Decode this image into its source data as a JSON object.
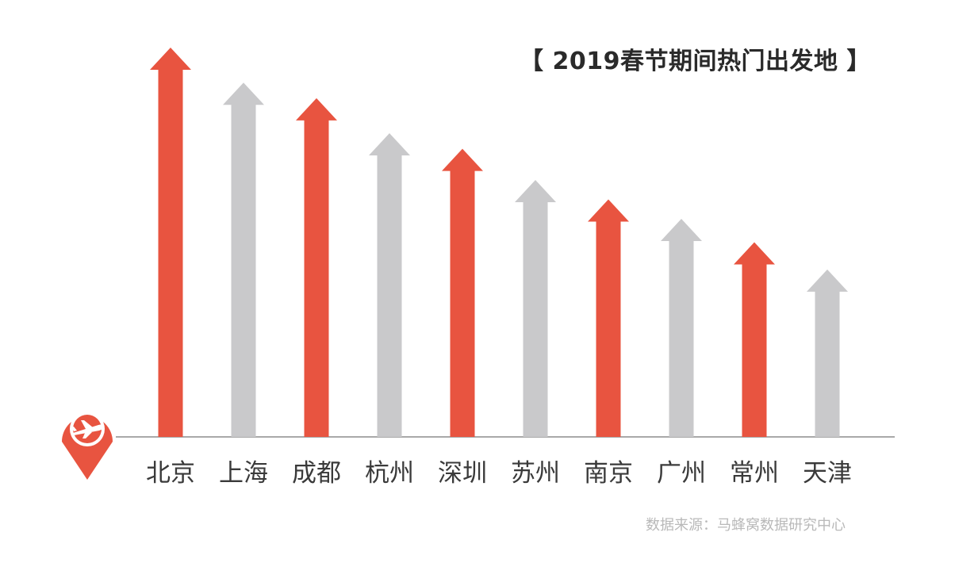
{
  "title": "【 2019春节期间热门出发地 】",
  "source": "数据来源：马蜂窝数据研究中心",
  "colors": {
    "highlight": "#e85440",
    "muted": "#c9c9cb",
    "axis": "#a9a9a9",
    "text": "#3a3a3a"
  },
  "icons": {
    "location_pin": "location-pin-airplane-icon"
  },
  "chart_data": {
    "type": "bar",
    "categories": [
      "北京",
      "上海",
      "成都",
      "杭州",
      "深圳",
      "苏州",
      "南京",
      "广州",
      "常州",
      "天津"
    ],
    "values": [
      100,
      91,
      87,
      78,
      74,
      66,
      61,
      56,
      50,
      43
    ],
    "bar_colors": [
      "highlight",
      "muted",
      "highlight",
      "muted",
      "highlight",
      "muted",
      "highlight",
      "muted",
      "highlight",
      "muted"
    ],
    "title": "【 2019春节期间热门出发地 】",
    "xlabel": "",
    "ylabel": "",
    "ylim": [
      0,
      100
    ],
    "grid": false,
    "legend": "none",
    "mark_style": "upward-arrows"
  }
}
